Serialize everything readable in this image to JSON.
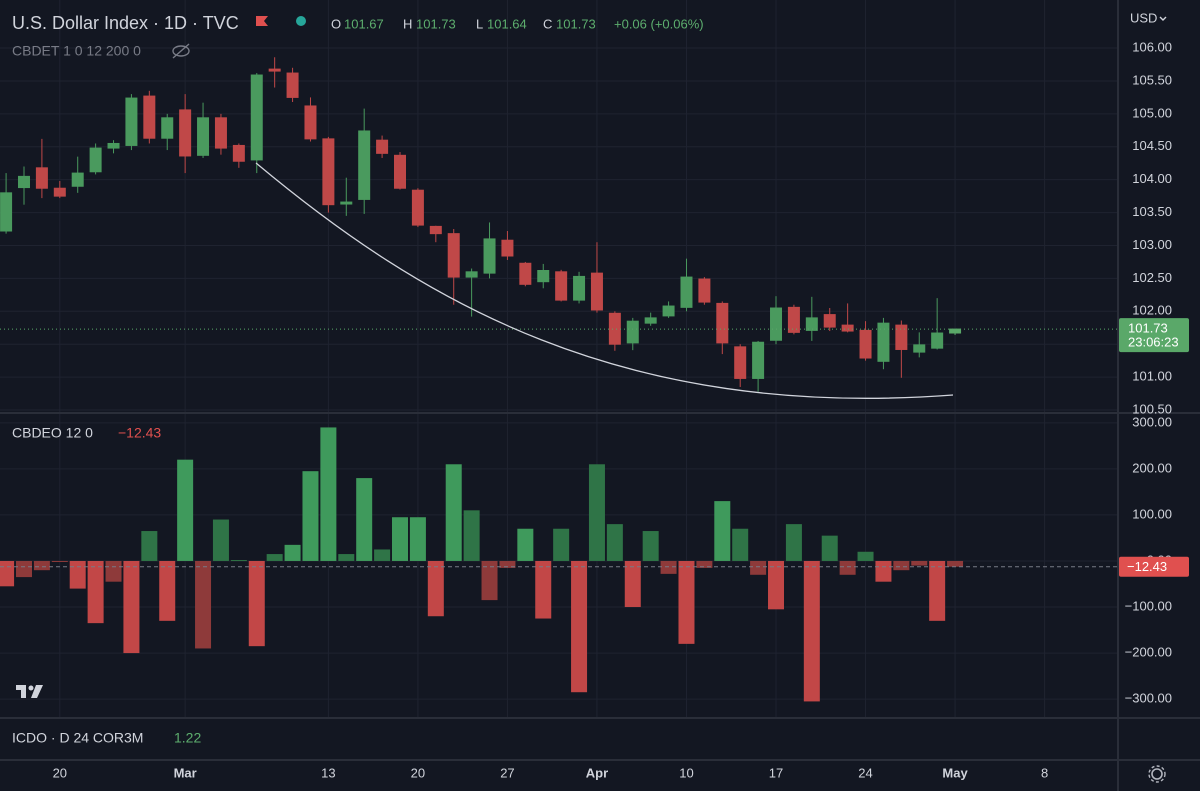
{
  "header": {
    "currency": "USD",
    "change": "+0.06 (+0.06%)",
    "countdown": "23:06:23",
    "ohlc_letters": [
      "O",
      "H",
      "L",
      "C"
    ]
  },
  "chart_data": [
    {
      "type": "candlestick",
      "title": "U.S. Dollar Index · 1D · TVC",
      "subtitle": "CBDET 1 0 12 200 0",
      "x": [
        0,
        1,
        2,
        3,
        4,
        5,
        6,
        7,
        8,
        9,
        10,
        11,
        12,
        13,
        14,
        15,
        16,
        17,
        18,
        19,
        20,
        21,
        22,
        23,
        24,
        25,
        26,
        27,
        28,
        29,
        30,
        31,
        32,
        33,
        34,
        35,
        36,
        37,
        38,
        39,
        40,
        41,
        42,
        43,
        44,
        45,
        46,
        47,
        48,
        49,
        50,
        51,
        52,
        53
      ],
      "open": [
        103.22,
        103.88,
        104.18,
        103.87,
        103.9,
        104.12,
        104.48,
        104.52,
        105.27,
        104.63,
        105.06,
        104.37,
        104.94,
        104.52,
        104.3,
        105.68,
        105.62,
        105.12,
        104.62,
        103.63,
        103.7,
        104.6,
        104.37,
        103.84,
        103.29,
        103.18,
        102.52,
        102.58,
        103.08,
        102.73,
        102.45,
        102.6,
        102.17,
        102.58,
        101.97,
        101.52,
        101.82,
        101.93,
        102.06,
        102.49,
        102.12,
        101.46,
        100.98,
        101.56,
        102.06,
        101.71,
        101.95,
        101.79,
        101.71,
        101.24,
        101.79,
        101.38,
        101.44,
        101.67
      ],
      "high": [
        104.1,
        104.2,
        104.62,
        103.98,
        104.35,
        104.55,
        104.6,
        105.3,
        105.35,
        105.0,
        105.3,
        105.17,
        105.0,
        104.55,
        105.62,
        105.86,
        105.7,
        105.25,
        104.65,
        104.03,
        105.08,
        104.67,
        104.42,
        103.87,
        103.3,
        103.25,
        102.65,
        103.35,
        103.22,
        102.75,
        102.72,
        102.63,
        102.6,
        103.05,
        102.0,
        101.9,
        101.98,
        102.15,
        102.8,
        102.52,
        102.15,
        101.5,
        101.55,
        102.23,
        102.1,
        102.22,
        102.05,
        102.12,
        101.85,
        101.9,
        101.86,
        101.68,
        102.2,
        101.73
      ],
      "low": [
        103.18,
        103.62,
        103.72,
        103.72,
        103.8,
        104.08,
        104.4,
        104.45,
        104.55,
        104.45,
        104.1,
        104.33,
        104.38,
        104.18,
        104.1,
        105.4,
        105.18,
        104.58,
        103.5,
        103.45,
        103.48,
        104.33,
        103.85,
        103.28,
        103.05,
        102.1,
        101.92,
        102.5,
        102.78,
        102.38,
        102.35,
        102.15,
        102.12,
        101.98,
        101.4,
        101.41,
        101.78,
        101.9,
        102.0,
        102.1,
        101.35,
        100.85,
        100.78,
        101.5,
        101.65,
        101.55,
        101.7,
        101.68,
        101.25,
        101.12,
        100.99,
        101.3,
        101.42,
        101.64
      ],
      "close": [
        103.8,
        104.05,
        103.87,
        103.75,
        104.1,
        104.48,
        104.55,
        105.24,
        104.63,
        104.94,
        104.36,
        104.94,
        104.48,
        104.28,
        105.59,
        105.65,
        105.25,
        104.62,
        103.62,
        103.66,
        104.74,
        104.4,
        103.87,
        103.31,
        103.18,
        102.52,
        102.6,
        103.1,
        102.84,
        102.41,
        102.62,
        102.17,
        102.53,
        102.02,
        101.5,
        101.85,
        101.9,
        102.08,
        102.52,
        102.14,
        101.52,
        100.98,
        101.53,
        102.05,
        101.68,
        101.9,
        101.76,
        101.7,
        101.29,
        101.82,
        101.42,
        101.49,
        101.67,
        101.73
      ],
      "colors": {
        "up": "#4a9a5e",
        "down": "#c04848",
        "last": "#5aa869"
      },
      "xlim": [
        -0.34,
        62.1
      ],
      "xticks": [
        {
          "value": 3,
          "label": "20"
        },
        {
          "value": 10,
          "label": "Mar"
        },
        {
          "value": 18,
          "label": "13"
        },
        {
          "value": 23,
          "label": "20"
        },
        {
          "value": 28,
          "label": "27"
        },
        {
          "value": 33,
          "label": "Apr"
        },
        {
          "value": 38,
          "label": "10"
        },
        {
          "value": 43,
          "label": "17"
        },
        {
          "value": 48,
          "label": "24"
        },
        {
          "value": 53,
          "label": "May"
        },
        {
          "value": 58,
          "label": "8"
        }
      ],
      "ylim": [
        100.47,
        106.73
      ],
      "yticks": [
        {
          "value": 100.5,
          "label": "100.50"
        },
        {
          "value": 101,
          "label": "101.00"
        },
        {
          "value": 101.5,
          "label": "101.50"
        },
        {
          "value": 102,
          "label": "102.00"
        },
        {
          "value": 102.5,
          "label": "102.50"
        },
        {
          "value": 103,
          "label": "103.00"
        },
        {
          "value": 103.5,
          "label": "103.50"
        },
        {
          "value": 104,
          "label": "104.00"
        },
        {
          "value": 104.5,
          "label": "104.50"
        },
        {
          "value": 105,
          "label": "105.00"
        },
        {
          "value": 105.5,
          "label": "105.50"
        },
        {
          "value": 106,
          "label": "106.00"
        }
      ],
      "grid": true
    },
    {
      "type": "histogram_bar",
      "title": "CBDEO 12 0",
      "x": [
        0,
        1,
        2,
        3,
        4,
        5,
        6,
        7,
        8,
        9,
        10,
        11,
        12,
        13,
        14,
        15,
        16,
        17,
        18,
        19,
        20,
        21,
        22,
        23,
        24,
        25,
        26,
        27,
        28,
        29,
        30,
        31,
        32,
        33,
        34,
        35,
        36,
        37,
        38,
        39,
        40,
        41,
        42,
        43,
        44,
        45,
        46,
        47,
        48,
        49,
        50,
        51,
        52,
        53
      ],
      "values": [
        -55,
        -35,
        -20,
        -2,
        -60,
        -135,
        -45,
        -200,
        65,
        -130,
        220,
        -190,
        90,
        2,
        -185,
        15,
        35,
        195,
        290,
        15,
        180,
        25,
        95,
        95,
        -120,
        210,
        110,
        -85,
        -15,
        70,
        -125,
        70,
        -285,
        210,
        80,
        -100,
        65,
        -28,
        -180,
        -15,
        130,
        70,
        -30,
        -105,
        80,
        -305,
        55,
        -30,
        20,
        -45,
        -20,
        -10,
        -130,
        -12.43
      ],
      "value_labels": {
        "53": "−12.43"
      },
      "colors": {
        "up": "#3f9a5c",
        "up_dim": "#2f7447",
        "down": "#c24747",
        "down_dim": "#8e3a3a"
      },
      "ylim": [
        -341,
        317
      ],
      "yticks": [
        {
          "value": 300,
          "label": "300.00"
        },
        {
          "value": 200,
          "label": "200.00"
        },
        {
          "value": 100,
          "label": "100.00"
        },
        {
          "value": 0,
          "label": "0.00"
        },
        {
          "value": -100,
          "label": "−100.00"
        },
        {
          "value": -200,
          "label": "−200.00"
        },
        {
          "value": -300,
          "label": "−300.00"
        }
      ],
      "grid": true
    }
  ],
  "indicator": {
    "title": "ICDO · D 24 COR3M",
    "value": "1.22"
  }
}
